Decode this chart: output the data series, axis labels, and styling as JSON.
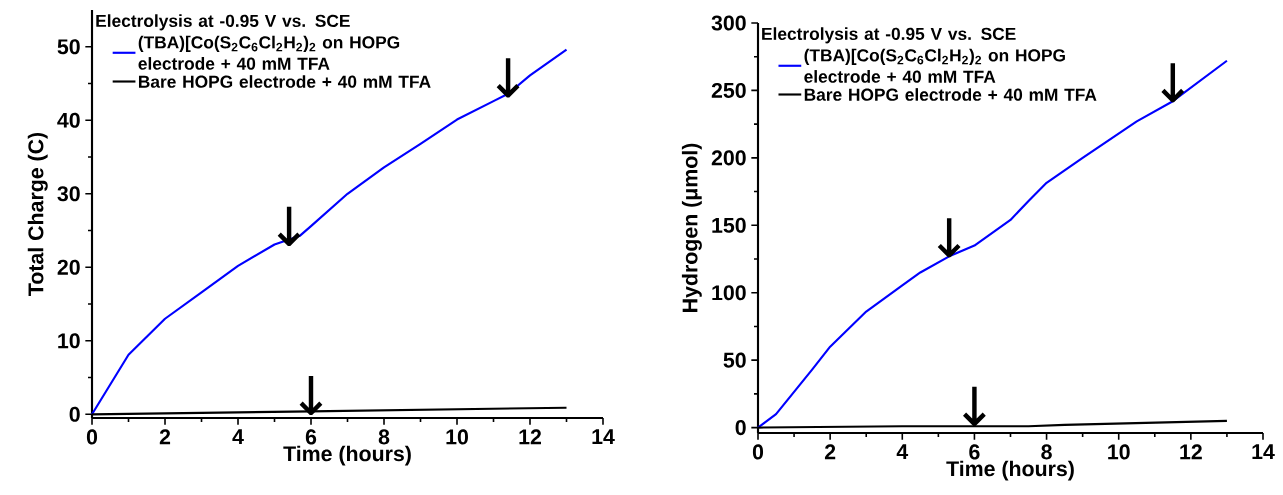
{
  "chart_data": [
    {
      "type": "line",
      "xlabel": "Time (hours)",
      "ylabel": "Total Charge (C)",
      "legend_title": "Electrolysis at -0.95 V vs. SCE",
      "legend": "top left",
      "xlim": [
        0,
        14
      ],
      "ylim": [
        -0.5,
        55
      ],
      "xticks": [
        0,
        2,
        4,
        6,
        8,
        10,
        12,
        14
      ],
      "yticks": [
        0,
        10,
        20,
        30,
        40,
        50
      ],
      "series": [
        {
          "name": "(TBA)[Co(S$_{2}$C$_{6}$Cl$_{2}$H$_{2}$)$_{2}$ on HOPG electrode + 40 mM TFA",
          "color": "#0000ff",
          "x": [
            0,
            1,
            2,
            3,
            4,
            5,
            5.7,
            6,
            7,
            8,
            9,
            10,
            11,
            11.4,
            12,
            13
          ],
          "values": [
            0,
            8.1,
            13.0,
            16.6,
            20.2,
            23.1,
            24.3,
            25.6,
            30.0,
            33.6,
            36.8,
            40.1,
            42.6,
            43.6,
            46.1,
            49.6
          ]
        },
        {
          "name": "Bare HOPG electrode + 40 mM TFA",
          "color": "#000000",
          "x": [
            0,
            6,
            13
          ],
          "values": [
            0,
            0.4,
            0.9
          ]
        }
      ],
      "annotations": [
        {
          "text": "↓",
          "x": 5.4,
          "y": 23.6
        },
        {
          "text": "↓",
          "x": 11.4,
          "y": 43.8
        },
        {
          "text": "↓",
          "x": 6,
          "y": 0.6
        }
      ]
    },
    {
      "type": "line",
      "xlabel": "Time (hours)",
      "ylabel": "Hydrogen (μmol)",
      "legend_title": "Electrolysis at -0.95 V vs. SCE",
      "legend": "top left",
      "xlim": [
        0,
        14
      ],
      "ylim": [
        -4,
        300
      ],
      "xticks": [
        0,
        2,
        4,
        6,
        8,
        10,
        12,
        14
      ],
      "yticks": [
        0,
        50,
        100,
        150,
        200,
        250,
        300
      ],
      "series": [
        {
          "name": "(TBA)[Co(S$_{2}$C$_{6}$Cl$_{2}$H$_{2}$)$_{2}$ on HOPG electrode + 40 mM TFA",
          "color": "#0000ff",
          "x": [
            0,
            0.5,
            1.5,
            2,
            2.5,
            3,
            4,
            4.5,
            5.3,
            6,
            7,
            7.5,
            8,
            9,
            10,
            10.5,
            11.5,
            13
          ],
          "values": [
            0,
            10,
            43,
            60,
            73,
            86,
            105.5,
            115,
            127,
            135,
            154,
            168,
            181.5,
            200,
            218,
            227,
            242,
            272
          ]
        },
        {
          "name": "Bare HOPG electrode + 40 mM TFA",
          "color": "#000000",
          "x": [
            0,
            4,
            6,
            7.5,
            8.5,
            10,
            13
          ],
          "values": [
            0,
            1,
            1,
            1,
            2,
            3,
            5
          ]
        }
      ],
      "annotations": [
        {
          "text": "↓",
          "x": 5.3,
          "y": 130
        },
        {
          "text": "↓",
          "x": 11.5,
          "y": 245
        },
        {
          "text": "↓",
          "x": 6,
          "y": 5
        }
      ]
    }
  ]
}
